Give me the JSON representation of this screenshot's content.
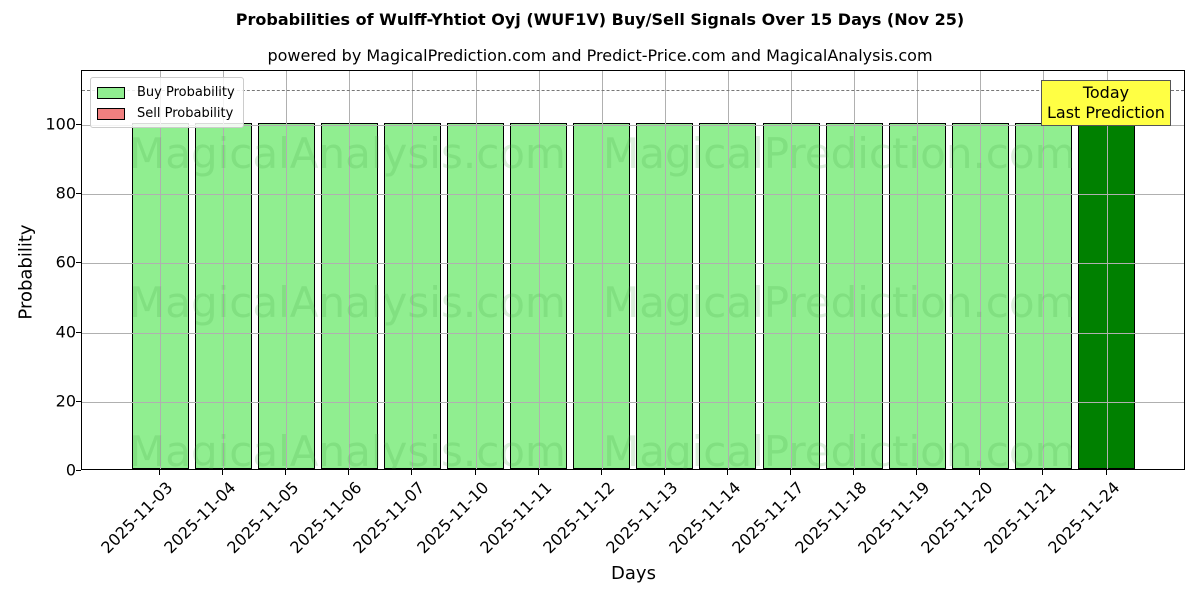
{
  "chart_data": {
    "type": "bar",
    "title": "Probabilities of Wulff-Yhtiot Oyj (WUF1V) Buy/Sell Signals Over 15 Days (Nov 25)",
    "subtitle": "powered by MagicalPrediction.com and Predict-Price.com and MagicalAnalysis.com",
    "xlabel": "Days",
    "ylabel": "Probability",
    "ylim": [
      0,
      115
    ],
    "yticks": [
      0,
      20,
      40,
      60,
      80,
      100
    ],
    "categories": [
      "2025-11-03",
      "2025-11-04",
      "2025-11-05",
      "2025-11-06",
      "2025-11-07",
      "2025-11-10",
      "2025-11-11",
      "2025-11-12",
      "2025-11-13",
      "2025-11-14",
      "2025-11-17",
      "2025-11-18",
      "2025-11-19",
      "2025-11-20",
      "2025-11-21",
      "2025-11-24"
    ],
    "series": [
      {
        "name": "Buy Probability",
        "color": "#90ee90",
        "values": [
          100,
          100,
          100,
          100,
          100,
          100,
          100,
          100,
          100,
          100,
          100,
          100,
          100,
          100,
          100,
          100
        ]
      },
      {
        "name": "Sell Probability",
        "color": "#f08080",
        "values": [
          0,
          0,
          0,
          0,
          0,
          0,
          0,
          0,
          0,
          0,
          0,
          0,
          0,
          0,
          0,
          0
        ]
      }
    ],
    "highlight": {
      "index": 15,
      "color": "#008000"
    },
    "reference_line": {
      "y": 110,
      "style": "dashed",
      "color": "#808080"
    },
    "annotation": {
      "text_line1": "Today",
      "text_line2": "Last Prediction",
      "background": "#ffff44"
    },
    "legend": {
      "position": "upper left",
      "entries": [
        "Buy Probability",
        "Sell Probability"
      ]
    },
    "grid": true,
    "watermarks": [
      "MagicalAnalysis.com",
      "MagicalPrediction.com"
    ]
  }
}
